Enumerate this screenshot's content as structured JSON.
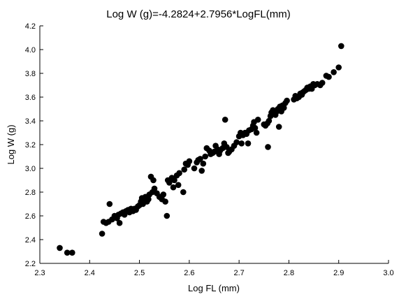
{
  "chart_data": {
    "type": "scatter",
    "title": "Log W (g)=-4.2824+2.7956*LogFL(mm)",
    "xlabel": "Log FL (mm)",
    "ylabel": "Log W (g)",
    "xlim": [
      2.3,
      3.0
    ],
    "ylim": [
      2.2,
      4.2
    ],
    "x_ticks": [
      "2.3",
      "2.4",
      "2.5",
      "2.6",
      "2.7",
      "2.8",
      "2.9",
      "3.0"
    ],
    "y_ticks": [
      "2.2",
      "2.4",
      "2.6",
      "2.8",
      "3.0",
      "3.2",
      "3.4",
      "3.6",
      "3.8",
      "4.0",
      "4.2"
    ],
    "grid": false,
    "legend": "none",
    "marker_color": "#000000",
    "points": [
      [
        2.34,
        2.33
      ],
      [
        2.355,
        2.29
      ],
      [
        2.365,
        2.29
      ],
      [
        2.425,
        2.45
      ],
      [
        2.428,
        2.55
      ],
      [
        2.433,
        2.54
      ],
      [
        2.438,
        2.55
      ],
      [
        2.44,
        2.7
      ],
      [
        2.445,
        2.57
      ],
      [
        2.45,
        2.6
      ],
      [
        2.455,
        2.58
      ],
      [
        2.458,
        2.61
      ],
      [
        2.46,
        2.54
      ],
      [
        2.463,
        2.62
      ],
      [
        2.467,
        2.63
      ],
      [
        2.47,
        2.61
      ],
      [
        2.473,
        2.64
      ],
      [
        2.477,
        2.65
      ],
      [
        2.48,
        2.63
      ],
      [
        2.483,
        2.66
      ],
      [
        2.487,
        2.64
      ],
      [
        2.49,
        2.66
      ],
      [
        2.493,
        2.65
      ],
      [
        2.497,
        2.68
      ],
      [
        2.5,
        2.69
      ],
      [
        2.503,
        2.72
      ],
      [
        2.505,
        2.75
      ],
      [
        2.507,
        2.7
      ],
      [
        2.51,
        2.73
      ],
      [
        2.512,
        2.76
      ],
      [
        2.515,
        2.72
      ],
      [
        2.518,
        2.74
      ],
      [
        2.52,
        2.78
      ],
      [
        2.523,
        2.93
      ],
      [
        2.526,
        2.8
      ],
      [
        2.528,
        2.9
      ],
      [
        2.53,
        2.83
      ],
      [
        2.535,
        2.79
      ],
      [
        2.54,
        2.76
      ],
      [
        2.545,
        2.74
      ],
      [
        2.548,
        2.78
      ],
      [
        2.552,
        2.72
      ],
      [
        2.555,
        2.6
      ],
      [
        2.557,
        2.9
      ],
      [
        2.56,
        2.88
      ],
      [
        2.565,
        2.92
      ],
      [
        2.568,
        2.84
      ],
      [
        2.57,
        2.9
      ],
      [
        2.575,
        2.94
      ],
      [
        2.578,
        2.86
      ],
      [
        2.58,
        2.96
      ],
      [
        2.588,
        2.8
      ],
      [
        2.59,
        2.99
      ],
      [
        2.593,
        3.04
      ],
      [
        2.597,
        3.03
      ],
      [
        2.6,
        3.06
      ],
      [
        2.61,
        3.0
      ],
      [
        2.615,
        3.05
      ],
      [
        2.618,
        3.07
      ],
      [
        2.622,
        3.08
      ],
      [
        2.625,
        2.98
      ],
      [
        2.628,
        3.04
      ],
      [
        2.632,
        3.1
      ],
      [
        2.635,
        3.17
      ],
      [
        2.64,
        3.15
      ],
      [
        2.643,
        3.12
      ],
      [
        2.647,
        3.13
      ],
      [
        2.65,
        3.14
      ],
      [
        2.653,
        3.19
      ],
      [
        2.657,
        3.16
      ],
      [
        2.66,
        3.12
      ],
      [
        2.662,
        3.15
      ],
      [
        2.667,
        3.17
      ],
      [
        2.67,
        3.21
      ],
      [
        2.672,
        3.41
      ],
      [
        2.675,
        3.18
      ],
      [
        2.678,
        3.13
      ],
      [
        2.68,
        3.14
      ],
      [
        2.685,
        3.16
      ],
      [
        2.69,
        3.19
      ],
      [
        2.695,
        3.22
      ],
      [
        2.7,
        3.27
      ],
      [
        2.703,
        3.3
      ],
      [
        2.705,
        3.21
      ],
      [
        2.708,
        3.28
      ],
      [
        2.712,
        3.3
      ],
      [
        2.715,
        3.29
      ],
      [
        2.718,
        3.21
      ],
      [
        2.72,
        3.32
      ],
      [
        2.725,
        3.33
      ],
      [
        2.728,
        3.36
      ],
      [
        2.73,
        3.39
      ],
      [
        2.732,
        3.34
      ],
      [
        2.735,
        3.3
      ],
      [
        2.738,
        3.41
      ],
      [
        2.75,
        3.37
      ],
      [
        2.753,
        3.36
      ],
      [
        2.757,
        3.38
      ],
      [
        2.758,
        3.18
      ],
      [
        2.76,
        3.4
      ],
      [
        2.763,
        3.44
      ],
      [
        2.765,
        3.47
      ],
      [
        2.768,
        3.49
      ],
      [
        2.77,
        3.46
      ],
      [
        2.773,
        3.45
      ],
      [
        2.776,
        3.48
      ],
      [
        2.778,
        3.5
      ],
      [
        2.78,
        3.35
      ],
      [
        2.782,
        3.52
      ],
      [
        2.785,
        3.48
      ],
      [
        2.787,
        3.53
      ],
      [
        2.79,
        3.51
      ],
      [
        2.793,
        3.55
      ],
      [
        2.796,
        3.57
      ],
      [
        2.81,
        3.58
      ],
      [
        2.813,
        3.61
      ],
      [
        2.816,
        3.59
      ],
      [
        2.82,
        3.6
      ],
      [
        2.823,
        3.63
      ],
      [
        2.826,
        3.62
      ],
      [
        2.828,
        3.64
      ],
      [
        2.831,
        3.65
      ],
      [
        2.834,
        3.66
      ],
      [
        2.837,
        3.68
      ],
      [
        2.84,
        3.67
      ],
      [
        2.843,
        3.69
      ],
      [
        2.846,
        3.67
      ],
      [
        2.849,
        3.71
      ],
      [
        2.852,
        3.7
      ],
      [
        2.857,
        3.71
      ],
      [
        2.863,
        3.7
      ],
      [
        2.867,
        3.72
      ],
      [
        2.875,
        3.78
      ],
      [
        2.88,
        3.77
      ],
      [
        2.89,
        3.81
      ],
      [
        2.9,
        3.85
      ],
      [
        2.905,
        4.03
      ]
    ]
  }
}
